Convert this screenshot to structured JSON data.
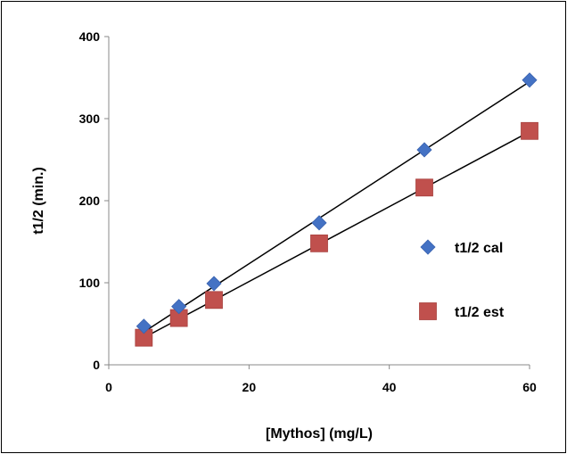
{
  "chart_data": {
    "type": "scatter",
    "title": "",
    "xlabel": "[Mythos] (mg/L)",
    "ylabel": "t1/2 (min.)",
    "xlim": [
      0,
      60
    ],
    "ylim": [
      0,
      400
    ],
    "xticks": [
      0,
      20,
      40,
      60
    ],
    "yticks": [
      0,
      100,
      200,
      300,
      400
    ],
    "grid": false,
    "legend_position": "right",
    "series": [
      {
        "name": "t1/2 cal",
        "marker": "diamond",
        "color": "#4472C4",
        "x": [
          5,
          10,
          15,
          30,
          45,
          60
        ],
        "y": [
          47,
          71,
          99,
          173,
          262,
          347
        ],
        "trendline": {
          "from": [
            5,
            40
          ],
          "to": [
            60,
            345
          ]
        }
      },
      {
        "name": "t1/2 est",
        "marker": "square",
        "color": "#C0504D",
        "x": [
          5,
          10,
          15,
          30,
          45,
          60
        ],
        "y": [
          33,
          57,
          79,
          148,
          216,
          285
        ],
        "trendline": {
          "from": [
            5,
            33
          ],
          "to": [
            60,
            284
          ]
        }
      }
    ]
  }
}
